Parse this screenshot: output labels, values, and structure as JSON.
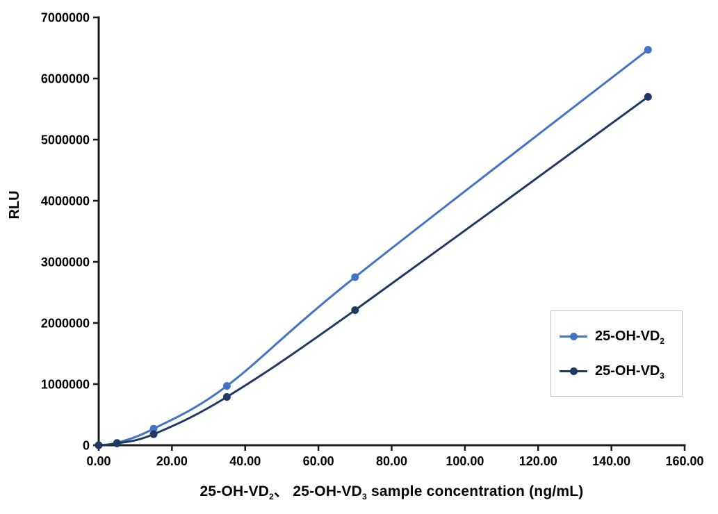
{
  "figure": {
    "background": "#FFFFFF"
  },
  "chart_data": {
    "type": "line",
    "title": "",
    "ylabel": "RLU",
    "xlabel_text": "25-OH-VD2、 25-OH-VD3 sample concentration (ng/mL)",
    "xlabel_parts": [
      {
        "t": "25-OH-VD"
      },
      {
        "t": "2",
        "sub": true
      },
      {
        "t": "、 25-OH-VD"
      },
      {
        "t": "3",
        "sub": true
      },
      {
        "t": " sample concentration (ng/mL)"
      }
    ],
    "x": [
      0.0,
      5.0,
      15.0,
      35.0,
      70.0,
      150.0
    ],
    "series": [
      {
        "name": "25-OH-VD2",
        "name_parts": [
          {
            "t": "25-OH-VD"
          },
          {
            "t": "2",
            "sub": true
          }
        ],
        "color": "#4472C4",
        "values": [
          0,
          40000,
          270000,
          970000,
          2750000,
          6470000
        ]
      },
      {
        "name": "25-OH-VD3",
        "name_parts": [
          {
            "t": "25-OH-VD"
          },
          {
            "t": "3",
            "sub": true
          }
        ],
        "color": "#203864",
        "values": [
          0,
          30000,
          180000,
          790000,
          2210000,
          5700000
        ]
      }
    ],
    "xlim": [
      0,
      160
    ],
    "ylim": [
      0,
      7000000
    ],
    "x_tick_values": [
      0,
      20,
      40,
      60,
      80,
      100,
      120,
      140,
      160
    ],
    "x_tick_labels": [
      "0.00",
      "20.00",
      "40.00",
      "60.00",
      "80.00",
      "100.00",
      "120.00",
      "140.00",
      "160.00"
    ],
    "y_tick_values": [
      0,
      1000000,
      2000000,
      3000000,
      4000000,
      5000000,
      6000000,
      7000000
    ],
    "y_tick_labels": [
      "0",
      "1000000",
      "2000000",
      "3000000",
      "4000000",
      "5000000",
      "6000000",
      "7000000"
    ],
    "grid": false,
    "smooth": true,
    "marker": "circle",
    "legend_position": "right-middle",
    "axis_color": "#1A1A1A",
    "text_color": "#000000",
    "legend_border_color": "#BFBFBF"
  }
}
